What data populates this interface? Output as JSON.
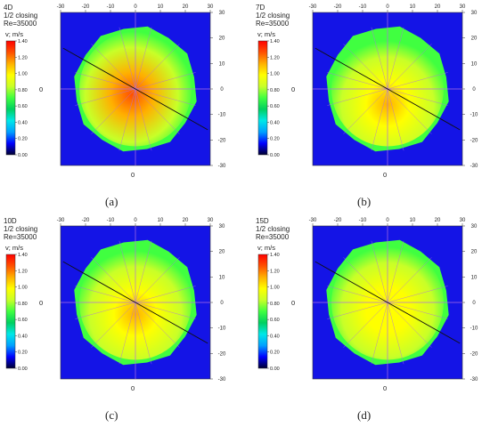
{
  "colors": {
    "background": "#1414e6",
    "colormap": [
      "#000030",
      "#0000ff",
      "#00a0ff",
      "#00e8e8",
      "#00d060",
      "#40ff40",
      "#c8ff28",
      "#ffff00",
      "#ffb000",
      "#ff5000",
      "#ff0000"
    ]
  },
  "chart_data": [
    {
      "type": "heatmap",
      "panel_label": "(a)",
      "title_lines": [
        "4D",
        "1/2 closing",
        "Re=35000"
      ],
      "colorbar_label": "v; m/s",
      "colorbar_ticks": [
        "1.40",
        "1.20",
        "1.00",
        "0.80",
        "0.60",
        "0.40",
        "0.20",
        "0.00"
      ],
      "value_range": [
        0,
        1.4
      ],
      "x_ticks": [
        "-30",
        "-20",
        "-10",
        "0",
        "10",
        "20",
        "30"
      ],
      "y_ticks": [
        "30",
        "20",
        "10",
        "0",
        "-10",
        "-20",
        "-30"
      ],
      "x_range": [
        -30,
        30
      ],
      "y_range": [
        -30,
        30
      ],
      "x_axis_label": "0",
      "y_axis_label": "0",
      "core_velocity": 1.3,
      "edge_velocity": 0.8,
      "core_center": [
        -2,
        -3
      ]
    },
    {
      "type": "heatmap",
      "panel_label": "(b)",
      "title_lines": [
        "7D",
        "1/2 closing",
        "Re=35000"
      ],
      "colorbar_label": "v; m/s",
      "colorbar_ticks": [
        "1.40",
        "1.20",
        "1.00",
        "0.80",
        "0.60",
        "0.40",
        "0.20",
        "0.00"
      ],
      "value_range": [
        0,
        1.4
      ],
      "x_ticks": [
        "-30",
        "-20",
        "-10",
        "0",
        "10",
        "20",
        "30"
      ],
      "y_ticks": [
        "30",
        "20",
        "10",
        "0",
        "-10",
        "-20",
        "-30"
      ],
      "x_range": [
        -30,
        30
      ],
      "y_range": [
        -30,
        30
      ],
      "x_axis_label": "0",
      "y_axis_label": "0",
      "core_velocity": 1.05,
      "edge_velocity": 0.82,
      "core_center": [
        0,
        -8
      ]
    },
    {
      "type": "heatmap",
      "panel_label": "(c)",
      "title_lines": [
        "10D",
        "1/2 closing",
        "Re=35000"
      ],
      "colorbar_label": "v; m/s",
      "colorbar_ticks": [
        "1.40",
        "1.20",
        "1.00",
        "0.80",
        "0.60",
        "0.40",
        "0.20",
        "0.00"
      ],
      "value_range": [
        0,
        1.4
      ],
      "x_ticks": [
        "-30",
        "-20",
        "-10",
        "0",
        "10",
        "20",
        "30"
      ],
      "y_ticks": [
        "30",
        "20",
        "10",
        "0",
        "-10",
        "-20",
        "-30"
      ],
      "x_range": [
        -30,
        30
      ],
      "y_range": [
        -30,
        30
      ],
      "x_axis_label": "0",
      "y_axis_label": "0",
      "core_velocity": 1.05,
      "edge_velocity": 0.82,
      "core_center": [
        0,
        -6
      ]
    },
    {
      "type": "heatmap",
      "panel_label": "(d)",
      "title_lines": [
        "15D",
        "1/2 closing",
        "Re=35000"
      ],
      "colorbar_label": "v; m/s",
      "colorbar_ticks": [
        "1.40",
        "1.20",
        "1.00",
        "0.80",
        "0.60",
        "0.40",
        "0.20",
        "0.00"
      ],
      "value_range": [
        0,
        1.4
      ],
      "x_ticks": [
        "-30",
        "-20",
        "-10",
        "0",
        "10",
        "20",
        "30"
      ],
      "y_ticks": [
        "30",
        "20",
        "10",
        "0",
        "-10",
        "-20",
        "-30"
      ],
      "x_range": [
        -30,
        30
      ],
      "y_range": [
        -30,
        30
      ],
      "x_axis_label": "0",
      "y_axis_label": "0",
      "core_velocity": 1.0,
      "edge_velocity": 0.82,
      "core_center": [
        0,
        -4
      ]
    }
  ]
}
